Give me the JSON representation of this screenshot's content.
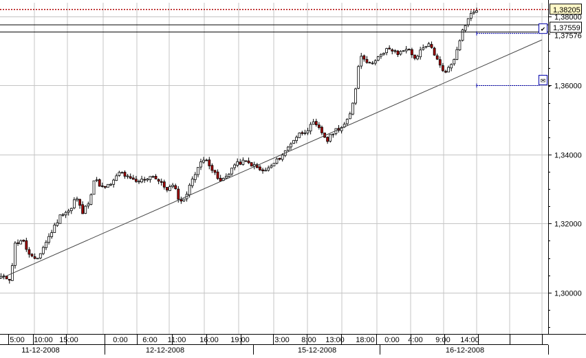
{
  "chart_data": {
    "type": "candlestick",
    "title": "",
    "xlabel": "",
    "ylabel": "",
    "ylim": [
      1.288,
      1.384
    ],
    "grid": true,
    "legend": "none",
    "y_ticks": [
      "1,38000",
      "1,36000",
      "1,34000",
      "1,32000",
      "1,30000"
    ],
    "y_tick_values": [
      1.38,
      1.36,
      1.34,
      1.32,
      1.3
    ],
    "x_time_ticks": [
      "5:00",
      "10:00",
      "15:00",
      "0:00",
      "6:00",
      "11:00",
      "16:00",
      "19:00",
      "3:00",
      "8:00",
      "13:00",
      "18:00",
      "0:00",
      "4:00",
      "9:00",
      "14:00"
    ],
    "x_date_labels": [
      "11-12-2008",
      "12-12-2008",
      "15-12-2008",
      "16-12-2008"
    ],
    "candle_count": 170,
    "close_path": [
      [
        0,
        1.3045
      ],
      [
        4,
        1.304
      ],
      [
        6,
        1.314
      ],
      [
        9,
        1.3155
      ],
      [
        12,
        1.311
      ],
      [
        15,
        1.309
      ],
      [
        18,
        1.313
      ],
      [
        22,
        1.318
      ],
      [
        26,
        1.323
      ],
      [
        30,
        1.324
      ],
      [
        32,
        1.328
      ],
      [
        35,
        1.323
      ],
      [
        38,
        1.327
      ],
      [
        40,
        1.333
      ],
      [
        44,
        1.33
      ],
      [
        48,
        1.332
      ],
      [
        51,
        1.335
      ],
      [
        55,
        1.333
      ],
      [
        58,
        1.332
      ],
      [
        62,
        1.333
      ],
      [
        65,
        1.334
      ],
      [
        68,
        1.332
      ],
      [
        71,
        1.33
      ],
      [
        74,
        1.331
      ],
      [
        77,
        1.326
      ],
      [
        80,
        1.329
      ],
      [
        82,
        1.333
      ],
      [
        85,
        1.337
      ],
      [
        88,
        1.339
      ],
      [
        91,
        1.335
      ],
      [
        94,
        1.332
      ],
      [
        97,
        1.334
      ],
      [
        100,
        1.337
      ],
      [
        104,
        1.338
      ],
      [
        108,
        1.337
      ],
      [
        112,
        1.335
      ],
      [
        115,
        1.336
      ],
      [
        118,
        1.338
      ],
      [
        122,
        1.341
      ],
      [
        125,
        1.344
      ],
      [
        128,
        1.346
      ],
      [
        131,
        1.347
      ],
      [
        134,
        1.349
      ],
      [
        137,
        1.347
      ],
      [
        140,
        1.344
      ],
      [
        143,
        1.347
      ],
      [
        146,
        1.348
      ],
      [
        148,
        1.349
      ],
      [
        150,
        1.352
      ],
      [
        152,
        1.359
      ],
      [
        154,
        1.369
      ],
      [
        156,
        1.368
      ],
      [
        158,
        1.366
      ],
      [
        161,
        1.368
      ],
      [
        164,
        1.369
      ],
      [
        166,
        1.371
      ],
      [
        168,
        1.37
      ],
      [
        170,
        1.369
      ],
      [
        172,
        1.37
      ],
      [
        174,
        1.371
      ],
      [
        176,
        1.369
      ],
      [
        178,
        1.368
      ],
      [
        180,
        1.37
      ],
      [
        182,
        1.371
      ],
      [
        184,
        1.372
      ],
      [
        186,
        1.369
      ],
      [
        188,
        1.366
      ],
      [
        190,
        1.364
      ],
      [
        192,
        1.365
      ],
      [
        194,
        1.367
      ],
      [
        196,
        1.372
      ],
      [
        198,
        1.376
      ],
      [
        200,
        1.379
      ],
      [
        202,
        1.381
      ],
      [
        204,
        1.382
      ]
    ],
    "price_labels": {
      "current": "1,38205",
      "line_level": "1,37559",
      "partly_hidden": "1,37576"
    },
    "levels": {
      "current": 1.38205,
      "level_a": 1.3776,
      "level_b": 1.3755,
      "order_a": 1.3755,
      "order_b": 1.36
    },
    "trendline": {
      "from": [
        0,
        1.304
      ],
      "to": [
        205,
        1.3776
      ]
    },
    "colors": {
      "up_candle": "#ffffff",
      "down_candle": "#aa0000",
      "candle_outline": "#000000",
      "grid": "#c4c4c4",
      "current_price_line": "#b00000",
      "level_line": "#000000",
      "trendline": "#444444",
      "order_line": "#0000aa",
      "current_label_bg": "#fff8c8",
      "level_label_text": "#cc2200"
    }
  }
}
